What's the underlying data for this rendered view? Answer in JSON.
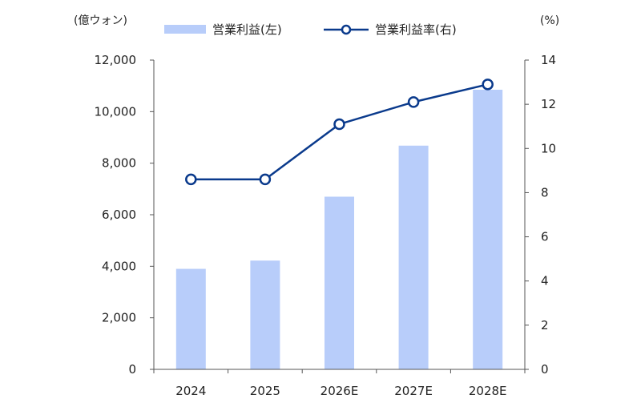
{
  "chart_data": {
    "type": "bar",
    "categories": [
      "2024",
      "2025",
      "2026E",
      "2027E",
      "2028E"
    ],
    "series": [
      {
        "name": "営業利益(左)",
        "type": "bar",
        "axis": "left",
        "color": "#b8cdfa",
        "values": [
          3900,
          4220,
          6700,
          8680,
          10850
        ]
      },
      {
        "name": "営業利益率(右)",
        "type": "line",
        "axis": "right",
        "color": "#0a3a8c",
        "marker": "hollow-circle",
        "values": [
          8.6,
          8.6,
          11.1,
          12.1,
          12.9
        ]
      }
    ],
    "left_axis": {
      "unit_label": "(億ウォン)",
      "ylim": [
        0,
        12000
      ],
      "ticks": [
        "0",
        "2,000",
        "4,000",
        "6,000",
        "8,000",
        "10,000",
        "12,000"
      ]
    },
    "right_axis": {
      "unit_label": "(%)",
      "ylim": [
        0,
        14
      ],
      "ticks": [
        "0",
        "2",
        "4",
        "6",
        "8",
        "10",
        "12",
        "14"
      ]
    },
    "legend_position": "top-center",
    "grid": false,
    "title": ""
  }
}
